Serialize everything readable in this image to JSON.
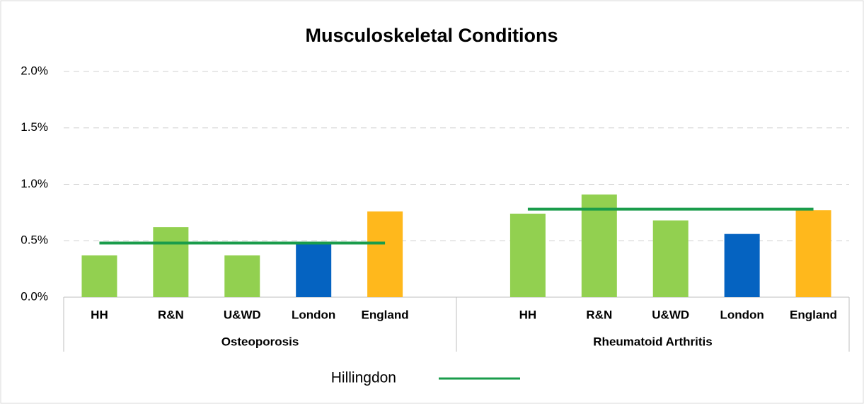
{
  "chart_data": {
    "type": "bar",
    "title": "Musculoskeletal Conditions",
    "categories": [
      "HH",
      "R&N",
      "U&WD",
      "London",
      "England"
    ],
    "colors": [
      "#92d050",
      "#92d050",
      "#92d050",
      "#0563c1",
      "#ffb81c"
    ],
    "series": [
      {
        "name": "Osteoporosis",
        "values": [
          0.37,
          0.62,
          0.37,
          0.49,
          0.76
        ]
      },
      {
        "name": "Rheumatoid Arthritis",
        "values": [
          0.74,
          0.91,
          0.68,
          0.56,
          0.77
        ]
      }
    ],
    "lines": [
      {
        "name": "Hillingdon",
        "color": "#1a9c4b",
        "values": [
          0.48,
          0.78
        ]
      }
    ],
    "ylim": [
      0,
      2
    ],
    "yticks": [
      {
        "value": 0,
        "label": "0.0%"
      },
      {
        "value": 0.5,
        "label": "0.5%"
      },
      {
        "value": 1,
        "label": "1.0%"
      },
      {
        "value": 1.5,
        "label": "1.5%"
      },
      {
        "value": 2,
        "label": "2.0%"
      }
    ],
    "grid": true,
    "legend": "bottom"
  }
}
